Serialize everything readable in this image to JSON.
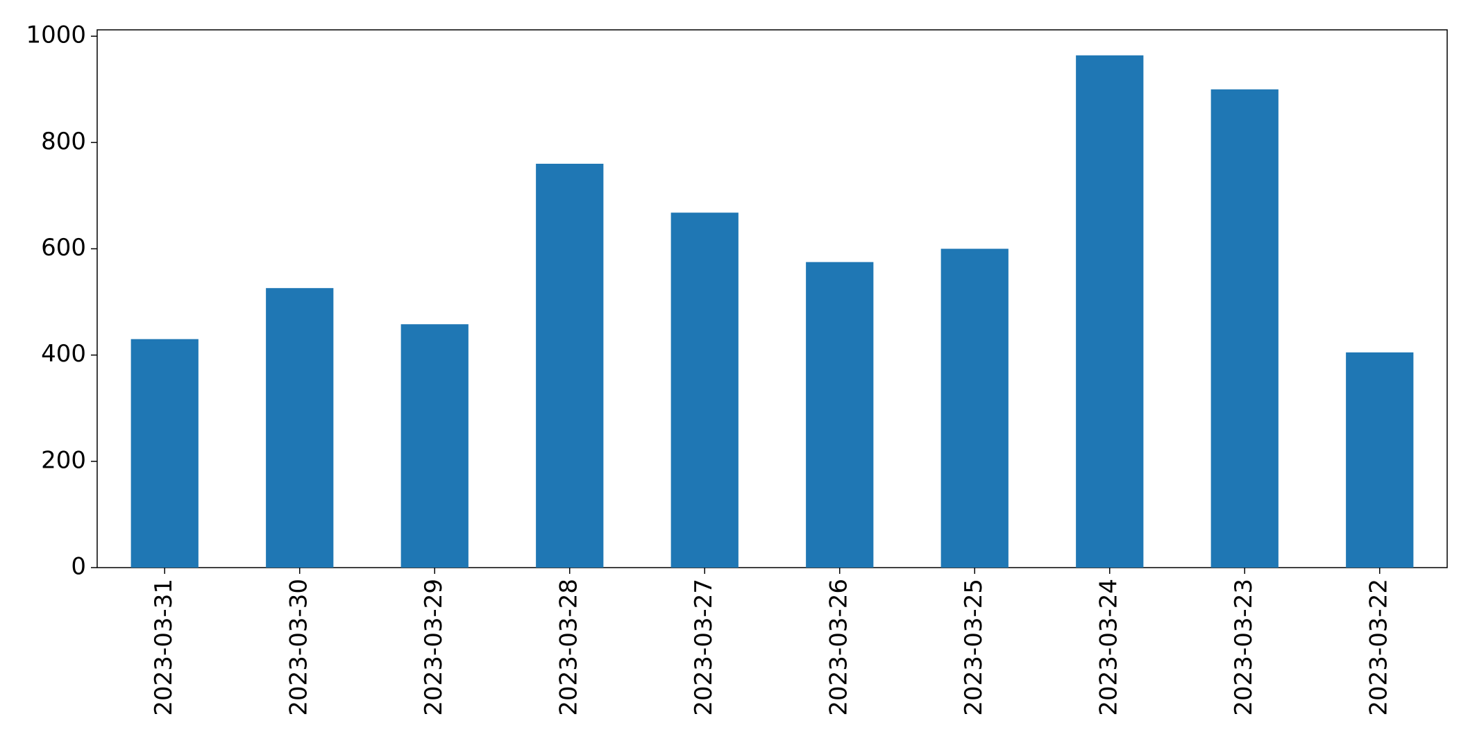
{
  "chart_data": {
    "type": "bar",
    "categories": [
      "2023-03-31",
      "2023-03-30",
      "2023-03-29",
      "2023-03-28",
      "2023-03-27",
      "2023-03-26",
      "2023-03-25",
      "2023-03-24",
      "2023-03-23",
      "2023-03-22"
    ],
    "values": [
      430,
      526,
      458,
      760,
      668,
      575,
      600,
      964,
      900,
      405
    ],
    "color": "#1f77b4",
    "ylim": [
      0,
      1012
    ],
    "yticks": [
      0,
      200,
      400,
      600,
      800,
      1000
    ],
    "grid": false
  }
}
